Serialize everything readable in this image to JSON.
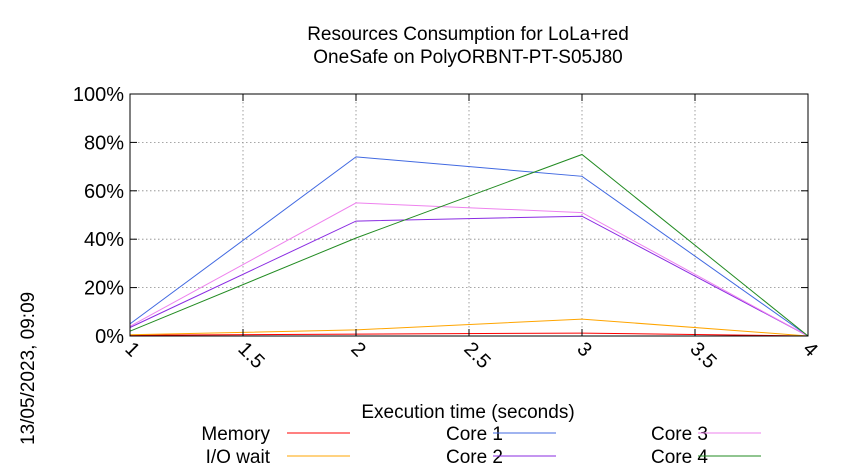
{
  "chart_data": {
    "type": "line",
    "title": "Resources Consumption for LoLa+red",
    "subtitle": "OneSafe on PolyORBNT-PT-S05J80",
    "xlabel": "Execution time (seconds)",
    "ylabel": "",
    "xlim": [
      1,
      4
    ],
    "ylim": [
      0,
      100
    ],
    "x_ticks": [
      "1",
      "1.5",
      "2",
      "2.5",
      "3",
      "3.5",
      "4"
    ],
    "y_ticks": [
      "0%",
      "20%",
      "40%",
      "60%",
      "80%",
      "100%"
    ],
    "grid": true,
    "legend_position": "bottom",
    "x": [
      1,
      2,
      3,
      4
    ],
    "series": [
      {
        "name": "Memory",
        "color": "#ff0000",
        "values": [
          0.3,
          0.8,
          1.2,
          0
        ]
      },
      {
        "name": "I/O wait",
        "color": "#ffa500",
        "values": [
          0.5,
          2.5,
          7,
          0
        ]
      },
      {
        "name": "Core 1",
        "color": "#4169e1",
        "values": [
          5,
          74,
          66,
          0
        ]
      },
      {
        "name": "Core 2",
        "color": "#8a2be2",
        "values": [
          3.5,
          47.5,
          49.5,
          0
        ]
      },
      {
        "name": "Core 3",
        "color": "#ee82ee",
        "values": [
          4,
          55,
          51,
          0
        ]
      },
      {
        "name": "Core 4",
        "color": "#228b22",
        "values": [
          2,
          40.5,
          75,
          0
        ]
      }
    ]
  },
  "timestamp": "13/05/2023, 09:09"
}
